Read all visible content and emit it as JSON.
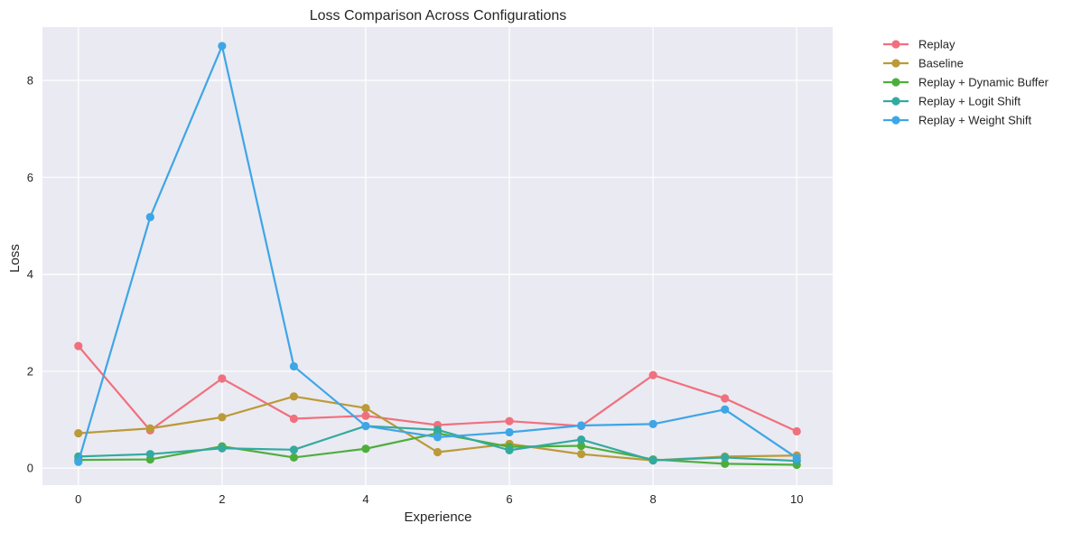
{
  "chart_data": {
    "type": "line",
    "title": "Loss Comparison Across Configurations",
    "xlabel": "Experience",
    "ylabel": "Loss",
    "x": [
      0,
      1,
      2,
      3,
      4,
      5,
      6,
      7,
      8,
      9,
      10
    ],
    "xlim": [
      -0.5,
      10.5
    ],
    "ylim": [
      -0.35,
      9.1
    ],
    "xticks": [
      0,
      2,
      4,
      6,
      8,
      10
    ],
    "yticks": [
      0,
      2,
      4,
      6,
      8
    ],
    "grid": true,
    "legend_position": "outside top-right",
    "background": "#eaeaf2",
    "series": [
      {
        "name": "Replay",
        "color": "#f0707e",
        "values": [
          2.52,
          0.78,
          1.85,
          1.02,
          1.08,
          0.89,
          0.97,
          0.87,
          1.92,
          1.44,
          0.76
        ]
      },
      {
        "name": "Baseline",
        "color": "#bb9a38",
        "values": [
          0.72,
          0.82,
          1.05,
          1.48,
          1.24,
          0.33,
          0.5,
          0.29,
          0.16,
          0.24,
          0.26
        ]
      },
      {
        "name": "Replay + Dynamic Buffer",
        "color": "#4eae3d",
        "values": [
          0.17,
          0.18,
          0.45,
          0.22,
          0.4,
          0.72,
          0.44,
          0.46,
          0.18,
          0.09,
          0.07
        ]
      },
      {
        "name": "Replay + Logit Shift",
        "color": "#33aaa0",
        "values": [
          0.24,
          0.29,
          0.41,
          0.38,
          0.87,
          0.79,
          0.37,
          0.59,
          0.16,
          0.22,
          0.15
        ]
      },
      {
        "name": "Replay + Weight Shift",
        "color": "#3ea6e6",
        "values": [
          0.13,
          5.18,
          8.71,
          2.1,
          0.87,
          0.64,
          0.74,
          0.88,
          0.91,
          1.21,
          0.21
        ]
      }
    ]
  }
}
